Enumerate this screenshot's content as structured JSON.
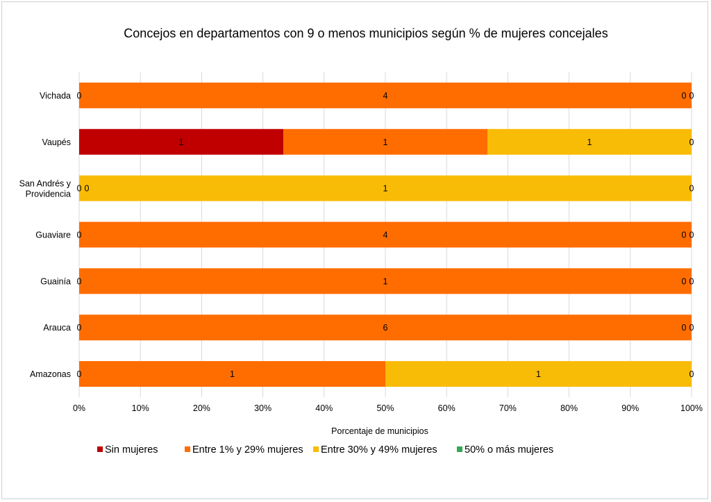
{
  "chart_data": {
    "type": "bar",
    "orientation": "horizontal",
    "stacking": "percent",
    "title": "Concejos en departamentos con 9 o menos municipios según % de mujeres concejales",
    "xlabel": "Porcentaje de municipios",
    "ylabel": "",
    "xlim": [
      0,
      100
    ],
    "x_ticks": [
      "0%",
      "10%",
      "20%",
      "30%",
      "40%",
      "50%",
      "60%",
      "70%",
      "80%",
      "90%",
      "100%"
    ],
    "grid": true,
    "legend_position": "bottom",
    "categories": [
      "Vichada",
      "Vaupés",
      "San Andrés y Providencia",
      "Guaviare",
      "Guainía",
      "Arauca",
      "Amazonas"
    ],
    "series": [
      {
        "name": "Sin mujeres",
        "color": "#C00000",
        "values": [
          0,
          1,
          0,
          0,
          0,
          0,
          0
        ]
      },
      {
        "name": "Entre 1% y 29% mujeres",
        "color": "#FF6D00",
        "values": [
          4,
          1,
          0,
          4,
          1,
          6,
          1
        ]
      },
      {
        "name": "Entre 30% y 49% mujeres",
        "color": "#F9BC06",
        "values": [
          0,
          1,
          1,
          0,
          0,
          0,
          1
        ]
      },
      {
        "name": "50% o más mujeres",
        "color": "#34A853",
        "values": [
          0,
          0,
          0,
          0,
          0,
          0,
          0
        ]
      }
    ]
  }
}
